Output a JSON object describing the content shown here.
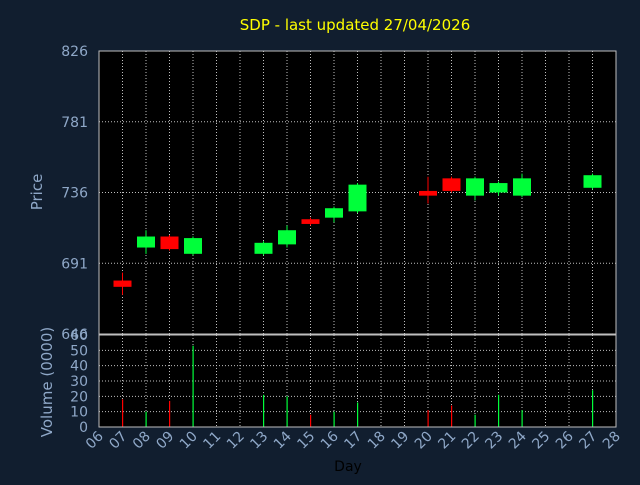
{
  "colors": {
    "background": "#111e2f",
    "title": "#ffff00",
    "axis_text": "#8fa8c8",
    "plot_background": "#000000",
    "grid": "#bfbfbf",
    "up": "#00ff3a",
    "down": "#ff0000",
    "day_label": "#000000"
  },
  "chart_data": [
    {
      "type": "candlestick",
      "title": "SDP - last updated 27/04/2026",
      "ylabel": "Price",
      "ylim": [
        646,
        826
      ],
      "yticks": [
        "826",
        "781",
        "736",
        "691",
        "646"
      ],
      "grid": true,
      "up_color": "#00ff3a",
      "down_color": "#ff0000",
      "candles": [
        {
          "day": "07",
          "open": 680,
          "close": 676,
          "high": 685,
          "low": 671
        },
        {
          "day": "08",
          "open": 701,
          "close": 708,
          "high": 712,
          "low": 697
        },
        {
          "day": "09",
          "open": 708,
          "close": 700,
          "high": 709,
          "low": 699
        },
        {
          "day": "10",
          "open": 697,
          "close": 707,
          "high": 708,
          "low": 696
        },
        {
          "day": "13",
          "open": 697,
          "close": 704,
          "high": 705,
          "low": 696
        },
        {
          "day": "14",
          "open": 703,
          "close": 712,
          "high": 715,
          "low": 701
        },
        {
          "day": "15",
          "open": 719,
          "close": 716,
          "high": 720,
          "low": 715
        },
        {
          "day": "16",
          "open": 720,
          "close": 726,
          "high": 727,
          "low": 717
        },
        {
          "day": "17",
          "open": 724,
          "close": 741,
          "high": 742,
          "low": 723
        },
        {
          "day": "20",
          "open": 737,
          "close": 734,
          "high": 746,
          "low": 729
        },
        {
          "day": "21",
          "open": 745,
          "close": 737,
          "high": 746,
          "low": 736
        },
        {
          "day": "22",
          "open": 734,
          "close": 745,
          "high": 746,
          "low": 731
        },
        {
          "day": "23",
          "open": 736,
          "close": 742,
          "high": 743,
          "low": 734
        },
        {
          "day": "24",
          "open": 734,
          "close": 745,
          "high": 748,
          "low": 733
        },
        {
          "day": "27",
          "open": 739,
          "close": 747,
          "high": 748,
          "low": 738
        }
      ]
    },
    {
      "type": "bar",
      "ylabel": "Volume (0000)",
      "xlabel": "Day",
      "ylim": [
        0,
        60
      ],
      "yticks": [
        "60",
        "50",
        "40",
        "30",
        "20",
        "10",
        "0"
      ],
      "grid": true,
      "categories": [
        "06",
        "07",
        "08",
        "09",
        "10",
        "11",
        "12",
        "13",
        "14",
        "15",
        "16",
        "17",
        "18",
        "19",
        "20",
        "21",
        "22",
        "23",
        "24",
        "25",
        "26",
        "27",
        "28"
      ],
      "values": [
        0,
        18,
        10,
        17,
        53,
        0,
        0,
        21,
        20,
        8,
        10,
        16,
        0,
        0,
        11,
        14,
        8,
        21,
        11,
        0,
        0,
        24,
        0
      ],
      "colors": [
        "",
        "#ff0000",
        "#00ff3a",
        "#ff0000",
        "#00ff3a",
        "",
        "",
        "#00ff3a",
        "#00ff3a",
        "#ff0000",
        "#00ff3a",
        "#00ff3a",
        "",
        "",
        "#ff0000",
        "#ff0000",
        "#00ff3a",
        "#00ff3a",
        "#00ff3a",
        "",
        "",
        "#00ff3a",
        ""
      ]
    }
  ]
}
